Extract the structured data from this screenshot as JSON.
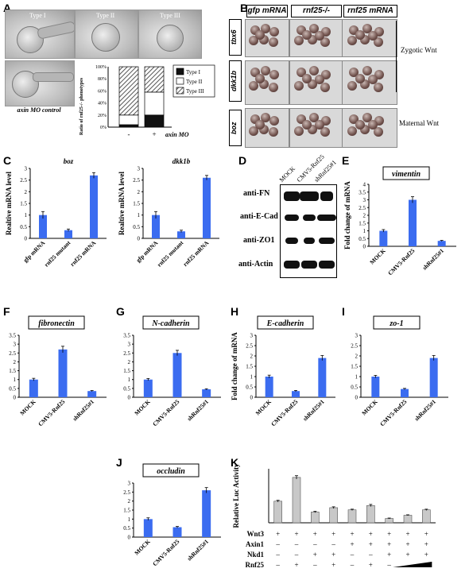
{
  "panels": {
    "A": "A",
    "B": "B",
    "C": "C",
    "D": "D",
    "E": "E",
    "F": "F",
    "G": "G",
    "H": "H",
    "I": "I",
    "J": "J",
    "K": "K"
  },
  "panelA": {
    "photo_labels": [
      "Type I",
      "Type II",
      "Type III"
    ],
    "control_label": "axin MO control",
    "legend": [
      "Type I",
      "Type II",
      "Type III"
    ],
    "ylabel": "Ratio of rnf25-/- phenotypes",
    "xticks": [
      "-",
      "+"
    ],
    "xlabel": "axin MO",
    "yticks": [
      "0%",
      "20%",
      "40%",
      "60%",
      "80%",
      "100%"
    ]
  },
  "panelB": {
    "col_headers": [
      "gfp mRNA",
      "rnf25-/-",
      "rnf25 mRNA"
    ],
    "row_labels": [
      "tbx6",
      "dkk1b",
      "boz"
    ],
    "side_labels": [
      "Zygotic Wnt",
      "Maternal Wnt"
    ]
  },
  "panelD": {
    "lanes": [
      "MOCK",
      "CMV5-Rnf25",
      "shRnf25#1"
    ],
    "bands": [
      "anti-FN",
      "anti-E-Cad",
      "anti-ZO1",
      "anti-Actin"
    ]
  },
  "chart_data": [
    {
      "id": "C-boz",
      "type": "bar",
      "title": "boz",
      "ylabel": "Realtive mRNA level",
      "categories": [
        "gfp mRNA",
        "rnf25 mutant",
        "rnf25 mRNA"
      ],
      "values": [
        1.0,
        0.35,
        2.7
      ],
      "errors": [
        0.15,
        0.05,
        0.12
      ],
      "ylim": [
        0,
        3
      ],
      "yticks": [
        "0",
        "0.5",
        "1",
        "1.5",
        "2",
        "2.5",
        "3"
      ]
    },
    {
      "id": "C-dkk1b",
      "type": "bar",
      "title": "dkk1b",
      "ylabel": "Realtive mRNA level",
      "categories": [
        "gfp mRNA",
        "rnf25 mutant",
        "rnf25 mRNA"
      ],
      "values": [
        1.0,
        0.3,
        2.6
      ],
      "errors": [
        0.15,
        0.05,
        0.1
      ],
      "ylim": [
        0,
        3
      ],
      "yticks": [
        "0",
        "0.5",
        "1",
        "1.5",
        "2",
        "2.5",
        "3"
      ]
    },
    {
      "id": "E",
      "type": "bar",
      "title": "vimentin",
      "ylabel": "Fold change of mRNA",
      "categories": [
        "MOCK",
        "CMV5-Rnf25",
        "shRnf25#1"
      ],
      "values": [
        1.0,
        3.0,
        0.35
      ],
      "errors": [
        0.08,
        0.2,
        0.03
      ],
      "ylim": [
        0,
        4
      ],
      "yticks": [
        "0",
        "0.5",
        "1",
        "1.5",
        "2",
        "2.5",
        "3",
        "3.5",
        "4"
      ]
    },
    {
      "id": "F",
      "type": "bar",
      "title": "fibronectin",
      "ylabel": "",
      "categories": [
        "MOCK",
        "CMV5-Rnf25",
        "shRnf25#1"
      ],
      "values": [
        1.0,
        2.7,
        0.35
      ],
      "errors": [
        0.07,
        0.18,
        0.03
      ],
      "ylim": [
        0,
        3.5
      ],
      "yticks": [
        "0",
        "0.5",
        "1",
        "1.5",
        "2",
        "2.5",
        "3",
        "3.5"
      ]
    },
    {
      "id": "G",
      "type": "bar",
      "title": "N-cadherin",
      "ylabel": "",
      "categories": [
        "MOCK",
        "CMV5-Rnf25",
        "shRnf25#1"
      ],
      "values": [
        1.0,
        2.5,
        0.45
      ],
      "errors": [
        0.06,
        0.15,
        0.03
      ],
      "ylim": [
        0,
        3.5
      ],
      "yticks": [
        "0",
        "0.5",
        "1",
        "1.5",
        "2",
        "2.5",
        "3",
        "3.5"
      ]
    },
    {
      "id": "H",
      "type": "bar",
      "title": "E-cadherin",
      "ylabel": "Fold change of mRNA",
      "categories": [
        "MOCK",
        "CMV5-Rnf25",
        "shRnf25#1"
      ],
      "values": [
        1.0,
        0.3,
        1.9
      ],
      "errors": [
        0.07,
        0.03,
        0.12
      ],
      "ylim": [
        0,
        3
      ],
      "yticks": [
        "0",
        "0.5",
        "1",
        "1.5",
        "2",
        "2.5",
        "3"
      ]
    },
    {
      "id": "I",
      "type": "bar",
      "title": "zo-1",
      "ylabel": "",
      "categories": [
        "MOCK",
        "CMV5-Rnf25",
        "shRnf25#1"
      ],
      "values": [
        1.0,
        0.4,
        1.9
      ],
      "errors": [
        0.06,
        0.03,
        0.12
      ],
      "ylim": [
        0,
        3
      ],
      "yticks": [
        "0",
        "0.5",
        "1",
        "1.5",
        "2",
        "2.5",
        "3"
      ]
    },
    {
      "id": "J",
      "type": "bar",
      "title": "occludin",
      "ylabel": "",
      "categories": [
        "MOCK",
        "CMV5-Rnf25",
        "shRnf25#1"
      ],
      "values": [
        1.0,
        0.55,
        2.6
      ],
      "errors": [
        0.07,
        0.04,
        0.15
      ],
      "ylim": [
        0,
        3
      ],
      "yticks": [
        "0",
        "0.5",
        "1",
        "1.5",
        "2",
        "2.5",
        "3"
      ]
    },
    {
      "id": "K",
      "type": "bar",
      "title": "",
      "ylabel": "Relative Luc Activity",
      "categories": [
        "1",
        "2",
        "3",
        "4",
        "5",
        "6",
        "7",
        "8",
        "9"
      ],
      "values": [
        1.0,
        2.1,
        0.5,
        0.7,
        0.6,
        0.8,
        0.2,
        0.35,
        0.6
      ],
      "errors": [
        0.04,
        0.08,
        0.03,
        0.04,
        0.03,
        0.05,
        0.02,
        0.02,
        0.03
      ],
      "ylim": [
        0,
        2.5
      ],
      "rows": [
        {
          "name": "Wnt3",
          "signs": [
            "+",
            "+",
            "+",
            "+",
            "+",
            "+",
            "+",
            "+",
            "+"
          ]
        },
        {
          "name": "Axin1",
          "signs": [
            "–",
            "–",
            "–",
            "–",
            "+",
            "+",
            "+",
            "+",
            "+"
          ]
        },
        {
          "name": "Nkd1",
          "signs": [
            "–",
            "–",
            "+",
            "+",
            "–",
            "–",
            "+",
            "+",
            "+"
          ]
        },
        {
          "name": "Rnf25",
          "signs": [
            "–",
            "+",
            "–",
            "+",
            "–",
            "+",
            "–",
            "",
            ""
          ]
        }
      ]
    }
  ],
  "panelA_stack": {
    "type": "bar",
    "categories": [
      "-",
      "+"
    ],
    "series": [
      {
        "name": "Type I",
        "values": [
          4,
          20
        ]
      },
      {
        "name": "Type II",
        "values": [
          16,
          38
        ]
      },
      {
        "name": "Type III",
        "values": [
          80,
          42
        ]
      }
    ]
  }
}
